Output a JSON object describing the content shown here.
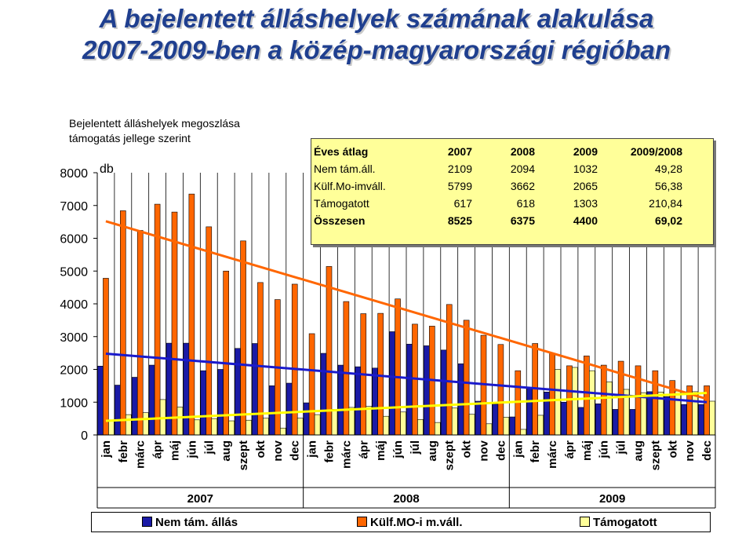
{
  "title": {
    "line1": "A bejelentett álláshelyek számának alakulása",
    "line2": "2007-2009-ben a közép-magyarországi régióban"
  },
  "colors": {
    "title": "#1f3f8f",
    "nem_tam": "#1a1aa6",
    "kulf_mo": "#ff6600",
    "tamogatott": "#ffff99",
    "trend_nem_tam": "#1a1acc",
    "trend_kulf": "#ff6600",
    "trend_tam": "#ffff00",
    "table_bg": "#ffff99"
  },
  "chart_data": {
    "type": "bar",
    "subtitle": "Bejelentett álláshelyek megoszlása\ntámogatás jellege szerint",
    "ylabel": "db",
    "ylim": [
      0,
      8000
    ],
    "yticks": [
      0,
      1000,
      2000,
      3000,
      4000,
      5000,
      6000,
      7000,
      8000
    ],
    "categories": [
      "jan",
      "febr",
      "márc",
      "ápr",
      "máj",
      "jún",
      "júl",
      "aug",
      "szept",
      "okt",
      "nov",
      "dec",
      "jan",
      "febr",
      "márc",
      "ápr",
      "máj",
      "jún",
      "júl",
      "aug",
      "szept",
      "okt",
      "nov",
      "dec",
      "jan",
      "febr",
      "márc",
      "ápr",
      "máj",
      "jún",
      "júl",
      "aug",
      "szept",
      "okt",
      "nov",
      "dec"
    ],
    "years": [
      "2007",
      "2008",
      "2009"
    ],
    "series": [
      {
        "name": "Nem tám. állás",
        "values": [
          2100,
          1520,
          1760,
          2130,
          2800,
          2800,
          1960,
          2000,
          2640,
          2790,
          1500,
          1580,
          980,
          2490,
          2130,
          2080,
          2040,
          3150,
          2770,
          2720,
          2590,
          2170,
          1030,
          940,
          550,
          1450,
          1310,
          1000,
          840,
          950,
          780,
          780,
          1320,
          1170,
          930,
          930
        ]
      },
      {
        "name": "Külf.MO-i m.váll.",
        "values": [
          4780,
          6840,
          6240,
          7040,
          6800,
          7350,
          6350,
          5000,
          5920,
          4650,
          4130,
          4600,
          3090,
          5140,
          4070,
          3700,
          3710,
          4150,
          3380,
          3320,
          3980,
          3500,
          3040,
          2760,
          1960,
          2790,
          2490,
          2110,
          2410,
          2130,
          2250,
          2110,
          1960,
          1660,
          1500,
          1500
        ]
      },
      {
        "name": "Támogatott",
        "values": [
          440,
          620,
          680,
          1080,
          850,
          460,
          500,
          430,
          450,
          510,
          210,
          510,
          620,
          780,
          840,
          870,
          570,
          700,
          470,
          380,
          820,
          630,
          340,
          540,
          170,
          600,
          2000,
          2060,
          1960,
          1620,
          1390,
          1290,
          1310,
          1340,
          1320,
          1030
        ]
      }
    ],
    "trendlines": [
      {
        "series": "Nem tám. állás",
        "start": 2480,
        "end": 1000
      },
      {
        "series": "Külf.MO-i m.váll.",
        "start": 6520,
        "end": 1100
      },
      {
        "series": "Támogatott",
        "start": 430,
        "end": 1280
      }
    ],
    "table": {
      "headers": [
        "Éves átlag",
        "2007",
        "2008",
        "2009",
        "2009/2008"
      ],
      "rows": [
        [
          "Nem tám.áll.",
          "2109",
          "2094",
          "1032",
          "49,28"
        ],
        [
          "Külf.Mo-imváll.",
          "5799",
          "3662",
          "2065",
          "56,38"
        ],
        [
          "Támogatott",
          "617",
          "618",
          "1303",
          "210,84"
        ],
        [
          "Összesen",
          "8525",
          "6375",
          "4400",
          "69,02"
        ]
      ]
    }
  }
}
